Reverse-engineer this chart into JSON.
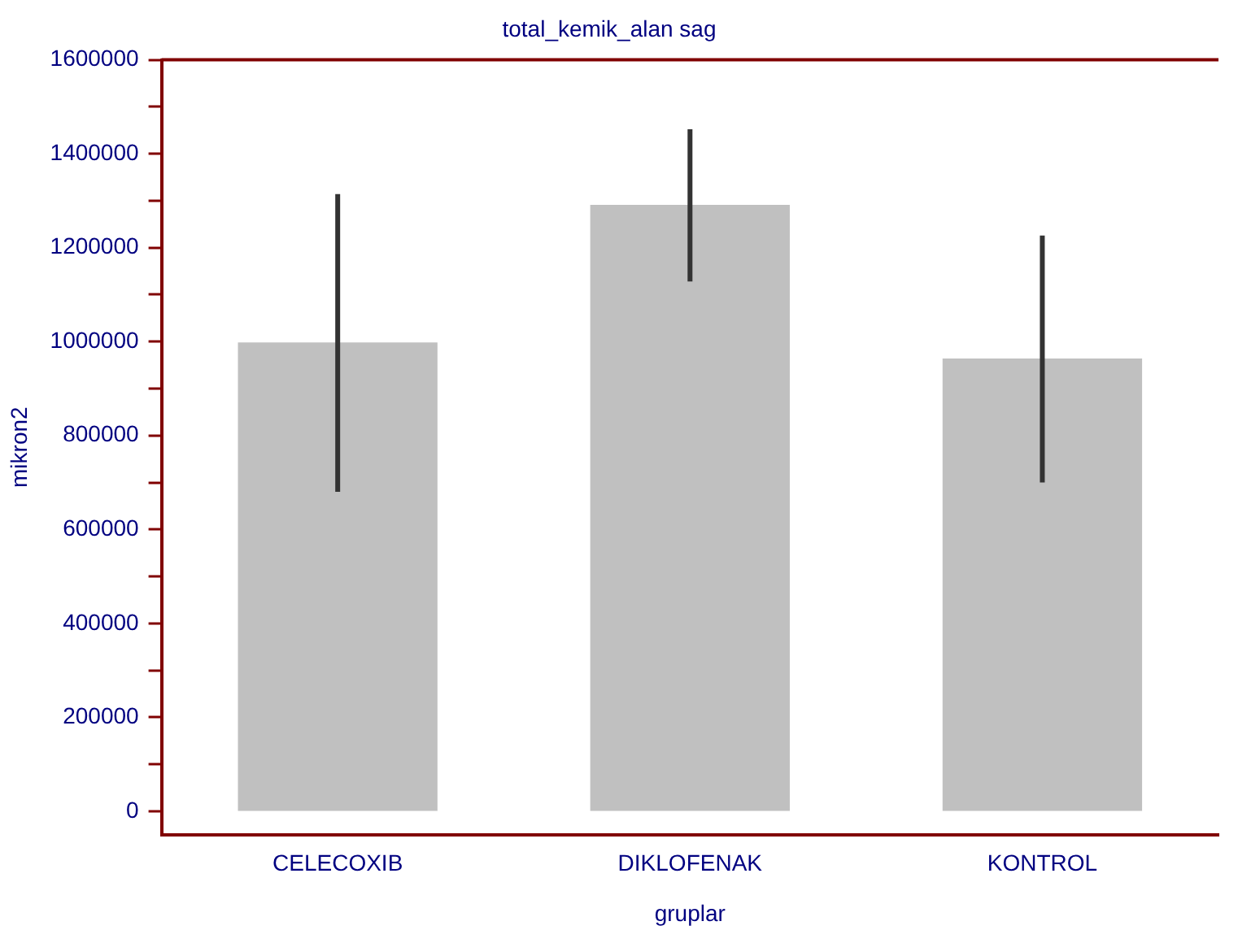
{
  "chart_data": {
    "type": "bar",
    "title": "total_kemik_alan sag",
    "xlabel": "gruplar",
    "ylabel": "mikron2",
    "categories": [
      "CELECOXIB",
      "DIKLOFENAK",
      "KONTROL"
    ],
    "values": [
      997000,
      1290000,
      963000
    ],
    "errors": [
      317000,
      162000,
      263000
    ],
    "color": "#c0c0c0",
    "ylim": [
      -50000,
      1600000
    ],
    "yticks": [
      0,
      {
        "value": 100000,
        "label": null
      },
      200000,
      {
        "value": 300000,
        "label": null
      },
      400000,
      {
        "value": 500000,
        "label": null
      },
      600000,
      {
        "value": 700000,
        "label": null
      },
      800000,
      {
        "value": 900000,
        "label": null
      },
      1000000,
      {
        "value": 1100000,
        "label": null
      },
      1200000,
      {
        "value": 1300000,
        "label": null
      },
      1400000,
      {
        "value": 1500000,
        "label": null
      },
      1600000
    ],
    "grid": false,
    "legend": false
  }
}
